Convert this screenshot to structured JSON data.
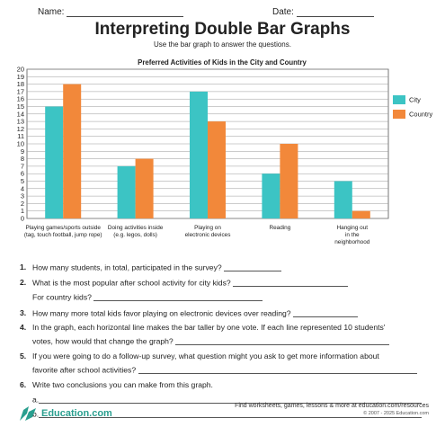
{
  "header": {
    "name_label": "Name:",
    "date_label": "Date:"
  },
  "title": "Interpreting Double Bar Graphs",
  "subtitle": "Use the bar graph to answer the questions.",
  "chart_data": {
    "type": "bar",
    "title": "Preferred Activities of Kids in the City and Country",
    "categories": [
      [
        "Playing games/sports outside",
        "(tag, touch football, jump rope)"
      ],
      [
        "Doing activities inside",
        "(e.g. legos, dolls)"
      ],
      [
        "Playing on",
        "electronic devices"
      ],
      [
        "Reading"
      ],
      [
        "Hanging out",
        "in the",
        "neighborhood"
      ]
    ],
    "series": [
      {
        "name": "City",
        "color": "#3cc4c4",
        "values": [
          15,
          7,
          17,
          6,
          5
        ]
      },
      {
        "name": "Country",
        "color": "#f2883a",
        "values": [
          18,
          8,
          13,
          10,
          1
        ]
      }
    ],
    "ylim": [
      0,
      20
    ],
    "yticks": [
      0,
      1,
      2,
      3,
      4,
      5,
      6,
      7,
      8,
      9,
      10,
      11,
      12,
      13,
      14,
      15,
      16,
      17,
      18,
      19,
      20
    ],
    "grid": true,
    "legend": "right"
  },
  "questions": [
    {
      "num": "1.",
      "text": "How many students, in total, participated in the survey?"
    },
    {
      "num": "2.",
      "text": "What is the most popular after school activity for city kids?",
      "cont": "For country kids?"
    },
    {
      "num": "3.",
      "text": "How many more total kids favor playing on electronic devices over reading?"
    },
    {
      "num": "4.",
      "text": "In the graph, each horizontal line makes the bar taller by one vote.  If each line represented 10 students'",
      "cont": "votes, how would that change the graph?"
    },
    {
      "num": "5.",
      "text": "If you were going to do a follow-up survey, what question might you ask to get more information about",
      "cont": "favorite after school activities?"
    },
    {
      "num": "6.",
      "text": "Write two conclusions you can make from this graph."
    }
  ],
  "answer_labels": {
    "a": "a.",
    "b": "b."
  },
  "footer": {
    "brand": "Education.com",
    "text": "Find worksheets, games, lessons & more at education.com/resources",
    "copyright": "© 2007 - 2025 Education.com"
  }
}
